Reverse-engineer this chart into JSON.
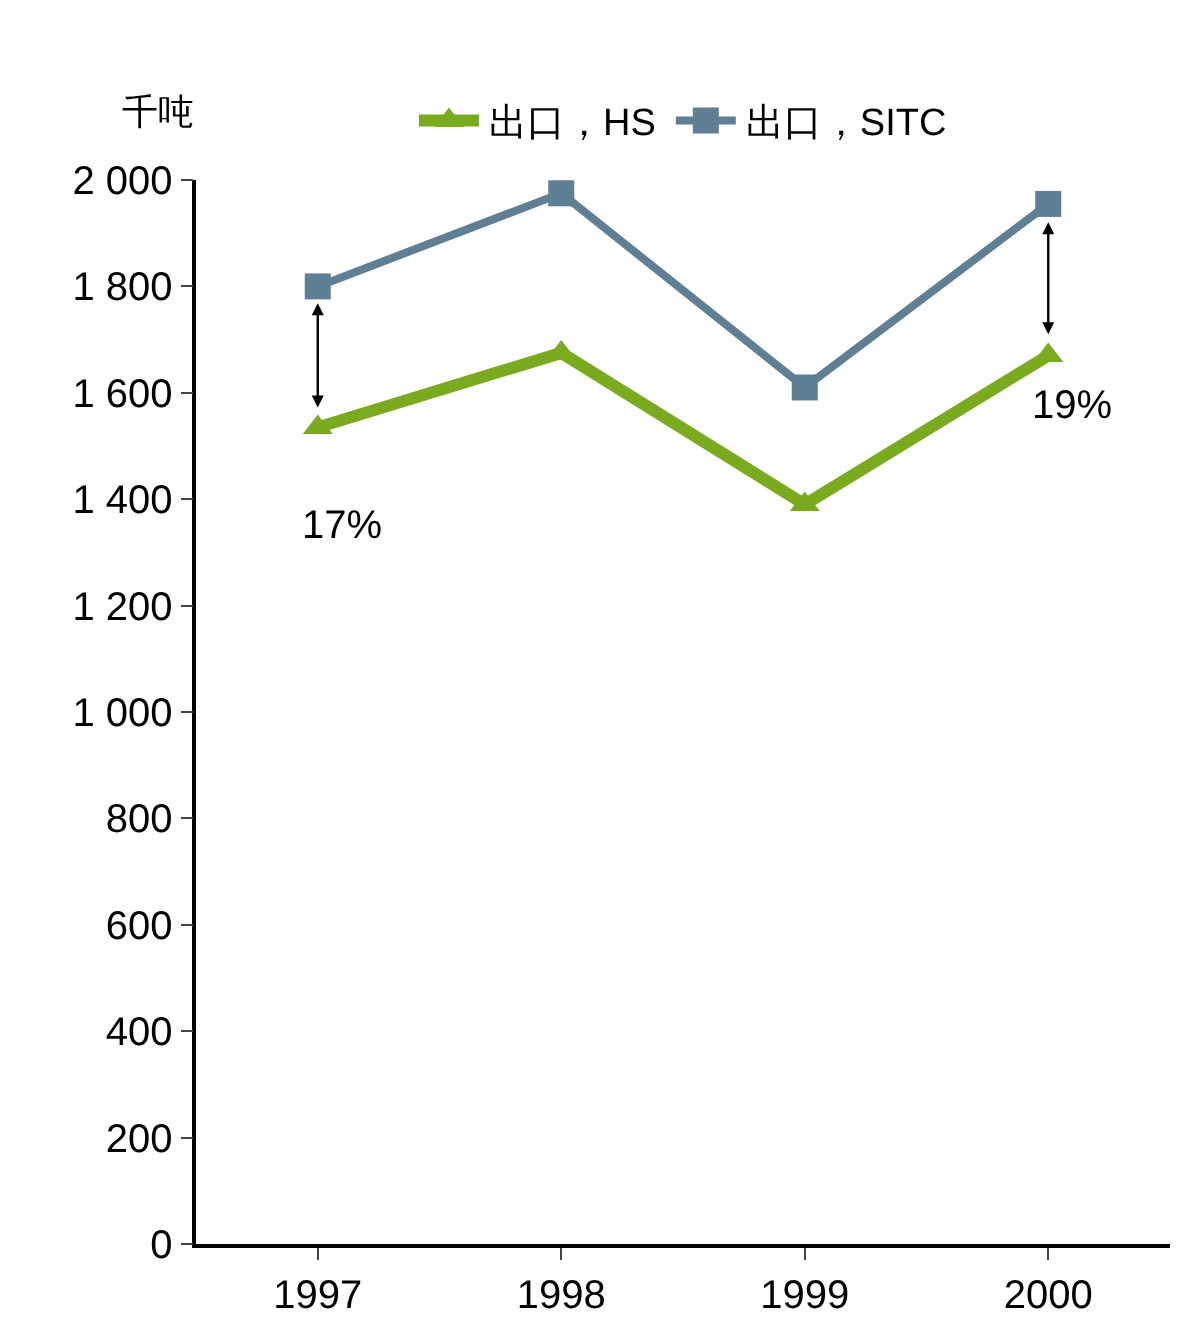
{
  "chart_data": {
    "type": "line",
    "ylabel": "千吨",
    "categories": [
      "1997",
      "1998",
      "1999",
      "2000"
    ],
    "series": [
      {
        "name": "出口，HS",
        "color": "#7aab1e",
        "marker": "triangle",
        "values": [
          1535,
          1675,
          1390,
          1670
        ]
      },
      {
        "name": "出口，SITC",
        "color": "#5f7f94",
        "marker": "square",
        "values": [
          1800,
          1975,
          1610,
          1955
        ]
      }
    ],
    "ylim": [
      0,
      2000
    ],
    "yticks": [
      0,
      200,
      400,
      600,
      800,
      {
        "value": 1000,
        "label": "1 000"
      },
      {
        "value": 1200,
        "label": "1 200"
      },
      {
        "value": 1400,
        "label": "1 400"
      },
      {
        "value": 1600,
        "label": "1 600"
      },
      {
        "value": 1800,
        "label": "1 800"
      },
      {
        "value": 2000,
        "label": "2 000"
      }
    ],
    "annotations": [
      "17%",
      "19%"
    ],
    "legend": "top",
    "line_style": "solid"
  }
}
